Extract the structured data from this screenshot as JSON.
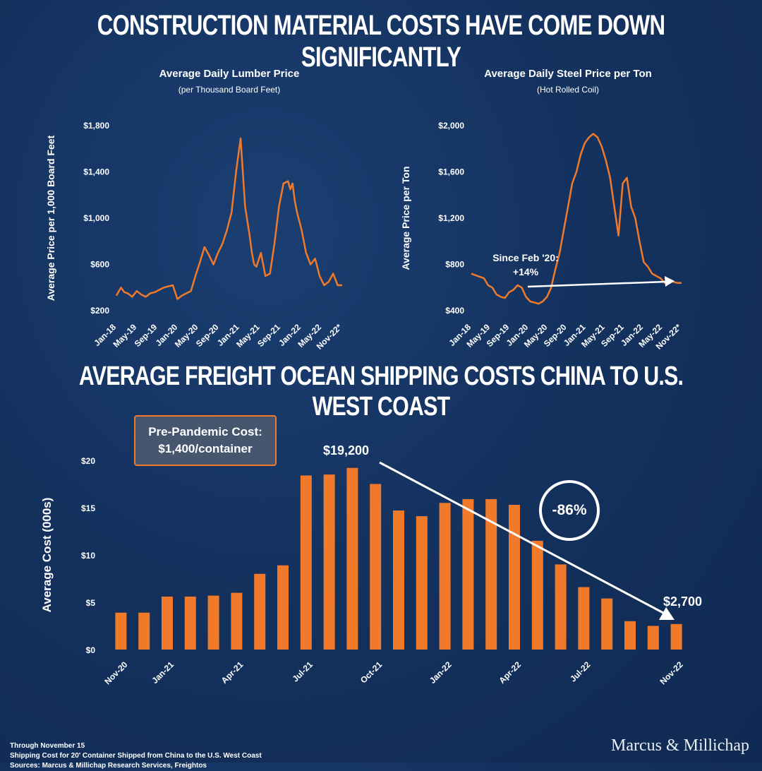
{
  "main_title": "CONSTRUCTION MATERIAL COSTS HAVE COME DOWN SIGNIFICANTLY",
  "section_title": "AVERAGE FREIGHT OCEAN SHIPPING COSTS CHINA TO U.S. WEST COAST",
  "colors": {
    "orange": "#f07a2a",
    "white": "#ffffff"
  },
  "callout": {
    "line1": "Pre-Pandemic Cost:",
    "line2": "$1,400/container"
  },
  "peak_label": "$19,200",
  "end_label": "$2,700",
  "pct_change": "-86%",
  "footnotes": [
    "Through November 15",
    "Shipping Cost for 20' Container Shipped from China to the U.S. West Coast",
    "Sources: Marcus & Millichap Research Services, Freightos"
  ],
  "brand": "Marcus & Millichap",
  "chart_data": [
    {
      "type": "line",
      "title": "Average Daily Lumber Price",
      "subtitle": "(per Thousand Board Feet)",
      "ylabel": "Average Price per 1,000 Board Feet",
      "ylim": [
        200,
        1800
      ],
      "y_ticks": [
        "$1,800",
        "$1,400",
        "$1,000",
        "$600",
        "$200"
      ],
      "y_tick_values": [
        1800,
        1400,
        1000,
        600,
        200
      ],
      "x_tick_labels": [
        "Jan-18",
        "May-19",
        "Sep-19",
        "Jan-20",
        "May-20",
        "Sep-20",
        "Jan-21",
        "May-21",
        "Sep-21",
        "Jan-22",
        "May-22",
        "Nov-22*"
      ],
      "series": [
        {
          "name": "Lumber",
          "x": [
            0.0,
            0.02,
            0.035,
            0.05,
            0.07,
            0.09,
            0.11,
            0.13,
            0.15,
            0.17,
            0.19,
            0.21,
            0.23,
            0.25,
            0.27,
            0.29,
            0.31,
            0.33,
            0.35,
            0.37,
            0.39,
            0.41,
            0.43,
            0.45,
            0.47,
            0.49,
            0.51,
            0.53,
            0.55,
            0.57,
            0.59,
            0.6,
            0.61,
            0.62,
            0.64,
            0.66,
            0.68,
            0.7,
            0.72,
            0.74,
            0.76,
            0.77,
            0.78,
            0.79,
            0.8,
            0.82,
            0.84,
            0.86,
            0.88,
            0.9,
            0.92,
            0.94,
            0.96,
            0.98,
            1.0
          ],
          "values": [
            330,
            400,
            360,
            350,
            320,
            370,
            340,
            320,
            350,
            360,
            380,
            400,
            410,
            420,
            300,
            330,
            350,
            370,
            500,
            620,
            750,
            680,
            600,
            700,
            780,
            900,
            1050,
            1400,
            1690,
            1100,
            850,
            700,
            600,
            580,
            700,
            500,
            520,
            780,
            1100,
            1300,
            1320,
            1250,
            1300,
            1150,
            1050,
            900,
            700,
            600,
            650,
            500,
            420,
            450,
            520,
            420,
            420
          ]
        }
      ]
    },
    {
      "type": "line",
      "title": "Average Daily Steel Price per Ton",
      "subtitle": "(Hot Rolled Coil)",
      "ylabel": "Average Price per Ton",
      "ylim": [
        400,
        2000
      ],
      "y_ticks": [
        "$2,000",
        "$1,600",
        "$1,200",
        "$800",
        "$400"
      ],
      "y_tick_values": [
        2000,
        1600,
        1200,
        800,
        400
      ],
      "x_tick_labels": [
        "Jan-18",
        "May-19",
        "Sep-19",
        "Jan-20",
        "May-20",
        "Sep-20",
        "Jan-21",
        "May-21",
        "Sep-21",
        "Jan-22",
        "May-22",
        "Nov-22*"
      ],
      "annotation": {
        "line1": "Since Feb '20:",
        "line2": "+14%"
      },
      "series": [
        {
          "name": "Steel",
          "x": [
            0.0,
            0.03,
            0.06,
            0.08,
            0.1,
            0.12,
            0.14,
            0.16,
            0.18,
            0.2,
            0.22,
            0.24,
            0.26,
            0.28,
            0.3,
            0.32,
            0.34,
            0.36,
            0.38,
            0.4,
            0.42,
            0.44,
            0.46,
            0.48,
            0.5,
            0.52,
            0.54,
            0.56,
            0.58,
            0.6,
            0.62,
            0.64,
            0.66,
            0.68,
            0.7,
            0.72,
            0.74,
            0.76,
            0.78,
            0.8,
            0.82,
            0.84,
            0.86,
            0.88,
            0.9,
            0.92,
            0.94,
            0.96,
            0.98,
            1.0
          ],
          "values": [
            720,
            700,
            680,
            620,
            600,
            540,
            520,
            510,
            560,
            580,
            620,
            600,
            520,
            480,
            470,
            460,
            480,
            520,
            600,
            760,
            900,
            1100,
            1300,
            1500,
            1600,
            1750,
            1850,
            1900,
            1930,
            1900,
            1820,
            1700,
            1550,
            1300,
            1050,
            1500,
            1550,
            1300,
            1200,
            1000,
            820,
            780,
            720,
            700,
            680,
            640,
            660,
            650,
            640,
            640
          ]
        }
      ]
    },
    {
      "type": "bar",
      "title": "AVERAGE FREIGHT OCEAN SHIPPING COSTS CHINA TO U.S. WEST COAST",
      "ylabel": "Average Cost (000s)",
      "ylim": [
        0,
        20
      ],
      "y_ticks": [
        "$20",
        "$15",
        "$10",
        "$5",
        "$0"
      ],
      "y_tick_values": [
        20,
        15,
        10,
        5,
        0
      ],
      "x_tick_labels": [
        "Nov-20",
        "Jan-21",
        "Apr-21",
        "Jul-21",
        "Oct-21",
        "Jan-22",
        "Apr-22",
        "Jul-22",
        "Nov-22"
      ],
      "x_tick_bar_index": [
        0,
        2,
        5,
        8,
        11,
        14,
        17,
        20,
        24
      ],
      "values": [
        3.9,
        3.9,
        5.6,
        5.6,
        5.7,
        6.0,
        8.0,
        8.9,
        18.4,
        18.5,
        19.2,
        17.5,
        14.7,
        14.1,
        15.5,
        15.9,
        15.9,
        15.3,
        11.5,
        9.0,
        6.6,
        5.4,
        3.0,
        2.5,
        2.7
      ]
    }
  ]
}
